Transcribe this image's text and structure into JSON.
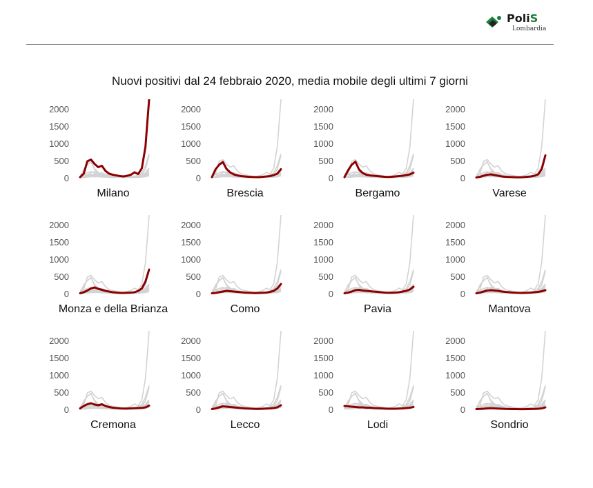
{
  "logo": {
    "name": "PoliS",
    "sub": "Lombardia",
    "name_main": "Poli",
    "name_accent": "S"
  },
  "colors": {
    "highlight": "#8b0000",
    "background_lines": "#d3d3d3",
    "axis_text": "#555555"
  },
  "chart_data": {
    "type": "line",
    "title": "Nuovi positivi dal 24 febbraio 2020, media mobile degli ultimi 7 giorni",
    "ylim": [
      0,
      2000
    ],
    "yticks": [
      0,
      500,
      1000,
      1500,
      2000
    ],
    "x": [
      1,
      2,
      3,
      4,
      5,
      6,
      7,
      8,
      9,
      10,
      11,
      12,
      13,
      14,
      15,
      16,
      17,
      18,
      19,
      20
    ],
    "grid": false,
    "series": [
      {
        "name": "Milano",
        "values": [
          20,
          120,
          480,
          530,
          400,
          310,
          350,
          200,
          120,
          90,
          70,
          50,
          40,
          60,
          90,
          160,
          110,
          280,
          900,
          2280
        ]
      },
      {
        "name": "Brescia",
        "values": [
          20,
          250,
          380,
          460,
          260,
          160,
          100,
          70,
          50,
          40,
          30,
          25,
          20,
          20,
          30,
          40,
          50,
          80,
          120,
          250
        ]
      },
      {
        "name": "Bergamo",
        "values": [
          20,
          220,
          380,
          470,
          240,
          140,
          90,
          70,
          60,
          50,
          40,
          30,
          25,
          30,
          40,
          50,
          60,
          80,
          100,
          150
        ]
      },
      {
        "name": "Varese",
        "values": [
          10,
          30,
          60,
          90,
          100,
          80,
          60,
          40,
          30,
          25,
          20,
          15,
          15,
          20,
          30,
          40,
          60,
          100,
          250,
          650
        ]
      },
      {
        "name": "Monza e della Brianza",
        "values": [
          10,
          40,
          90,
          150,
          180,
          140,
          110,
          80,
          60,
          40,
          30,
          20,
          20,
          25,
          30,
          40,
          80,
          150,
          350,
          700
        ]
      },
      {
        "name": "Como",
        "values": [
          10,
          20,
          40,
          60,
          80,
          70,
          60,
          50,
          40,
          30,
          25,
          20,
          15,
          20,
          25,
          30,
          50,
          80,
          150,
          280
        ]
      },
      {
        "name": "Pavia",
        "values": [
          10,
          30,
          60,
          100,
          110,
          90,
          80,
          70,
          60,
          50,
          40,
          30,
          25,
          25,
          30,
          40,
          60,
          80,
          120,
          200
        ]
      },
      {
        "name": "Mantova",
        "values": [
          10,
          30,
          60,
          90,
          100,
          90,
          80,
          60,
          50,
          40,
          30,
          25,
          20,
          20,
          25,
          30,
          40,
          50,
          70,
          100
        ]
      },
      {
        "name": "Cremona",
        "values": [
          30,
          100,
          150,
          180,
          140,
          120,
          150,
          100,
          70,
          50,
          40,
          30,
          25,
          25,
          30,
          35,
          40,
          45,
          60,
          110
        ]
      },
      {
        "name": "Lecco",
        "values": [
          10,
          30,
          60,
          90,
          80,
          70,
          60,
          50,
          40,
          30,
          25,
          20,
          15,
          15,
          20,
          25,
          30,
          40,
          60,
          120
        ]
      },
      {
        "name": "Lodi",
        "values": [
          100,
          90,
          80,
          70,
          60,
          60,
          50,
          50,
          40,
          35,
          30,
          25,
          20,
          20,
          20,
          25,
          30,
          40,
          50,
          70
        ]
      },
      {
        "name": "Sondrio",
        "values": [
          10,
          15,
          20,
          30,
          35,
          30,
          25,
          20,
          15,
          12,
          10,
          10,
          8,
          8,
          10,
          12,
          15,
          20,
          30,
          60
        ]
      }
    ]
  }
}
